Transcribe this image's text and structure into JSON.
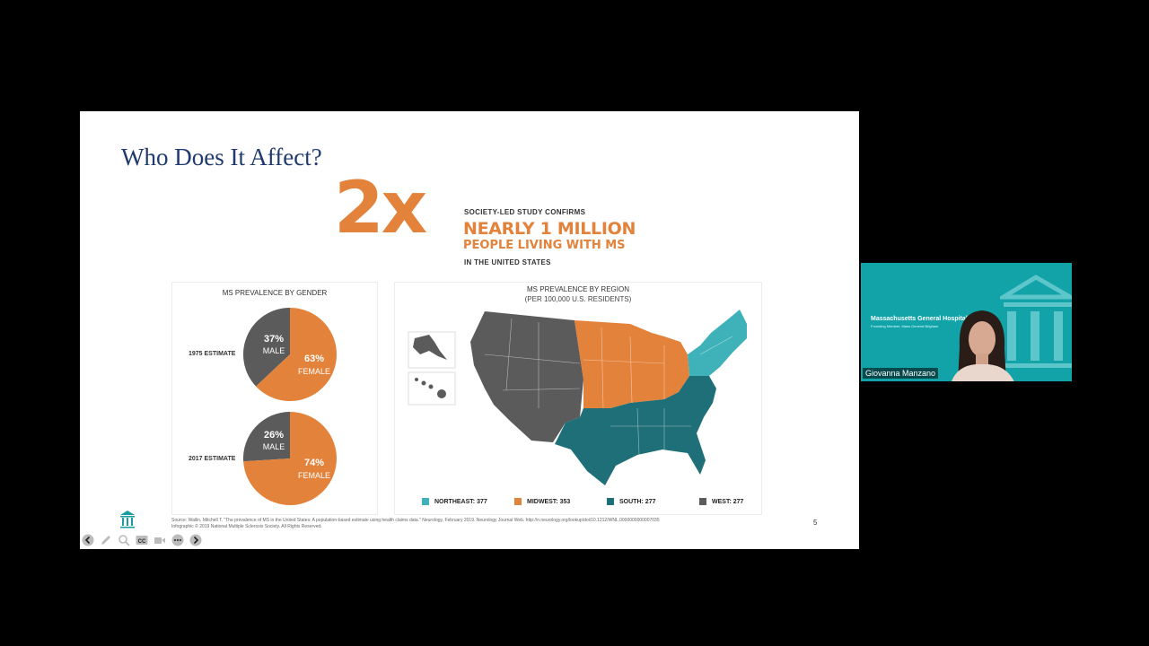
{
  "slide": {
    "title": "Who Does It Affect?",
    "hero": {
      "multiplier": "2x",
      "line1": "SOCIETY-LED STUDY CONFIRMS",
      "line2": "NEARLY 1 MILLION",
      "line3": "PEOPLE LIVING WITH MS",
      "line4": "IN THE UNITED STATES"
    },
    "gender": {
      "title": "MS PREVALENCE BY GENDER",
      "rows": [
        {
          "label": "1975 ESTIMATE",
          "male_pct": "37%",
          "male_label": "MALE",
          "female_pct": "63%",
          "female_label": "FEMALE"
        },
        {
          "label": "2017 ESTIMATE",
          "male_pct": "26%",
          "male_label": "MALE",
          "female_pct": "74%",
          "female_label": "FEMALE"
        }
      ]
    },
    "region": {
      "title": "MS PREVALENCE BY REGION",
      "subtitle": "(PER 100,000 U.S. RESIDENTS)",
      "legend": [
        {
          "name": "NORTHEAST:",
          "value": "377",
          "color": "#3fb1b9"
        },
        {
          "name": "MIDWEST:",
          "value": "353",
          "color": "#e3823a"
        },
        {
          "name": "SOUTH:",
          "value": "277",
          "color": "#1f6f78"
        },
        {
          "name": "WEST:",
          "value": "277",
          "color": "#5b5b5b"
        }
      ]
    },
    "source_line1": "Source: Wallin, Mitchell T. \"The prevalence of MS in the United States: A population-based estimate using health claims data.\" Neurology, February 2019. Neurology Journal Web. http://n.neurology.org/lookup/doi/10.1212/WNL.0000000000007035",
    "source_line2": "Infographic © 2019 National Multiple Sclerosis Society. All Rights Reserved.",
    "page_number": "5"
  },
  "chart_data": [
    {
      "type": "pie",
      "title": "1975 ESTIMATE",
      "labels": [
        "MALE",
        "FEMALE"
      ],
      "values": [
        37,
        63
      ],
      "colors": [
        "#5b5b5b",
        "#e3823a"
      ]
    },
    {
      "type": "pie",
      "title": "2017 ESTIMATE",
      "labels": [
        "MALE",
        "FEMALE"
      ],
      "values": [
        26,
        74
      ],
      "colors": [
        "#5b5b5b",
        "#e3823a"
      ]
    }
  ],
  "toolbar": {
    "icons": [
      "back-icon",
      "pen-icon",
      "zoom-icon",
      "captions-icon",
      "video-icon",
      "more-icon",
      "forward-icon"
    ],
    "cc_text": "CC"
  },
  "video": {
    "org_name": "Massachusetts General Hospital",
    "org_sub": "Founding Member, Mass General Brigham",
    "participant_name": "Giovanna Manzano",
    "background_color": "#12a3a8"
  }
}
